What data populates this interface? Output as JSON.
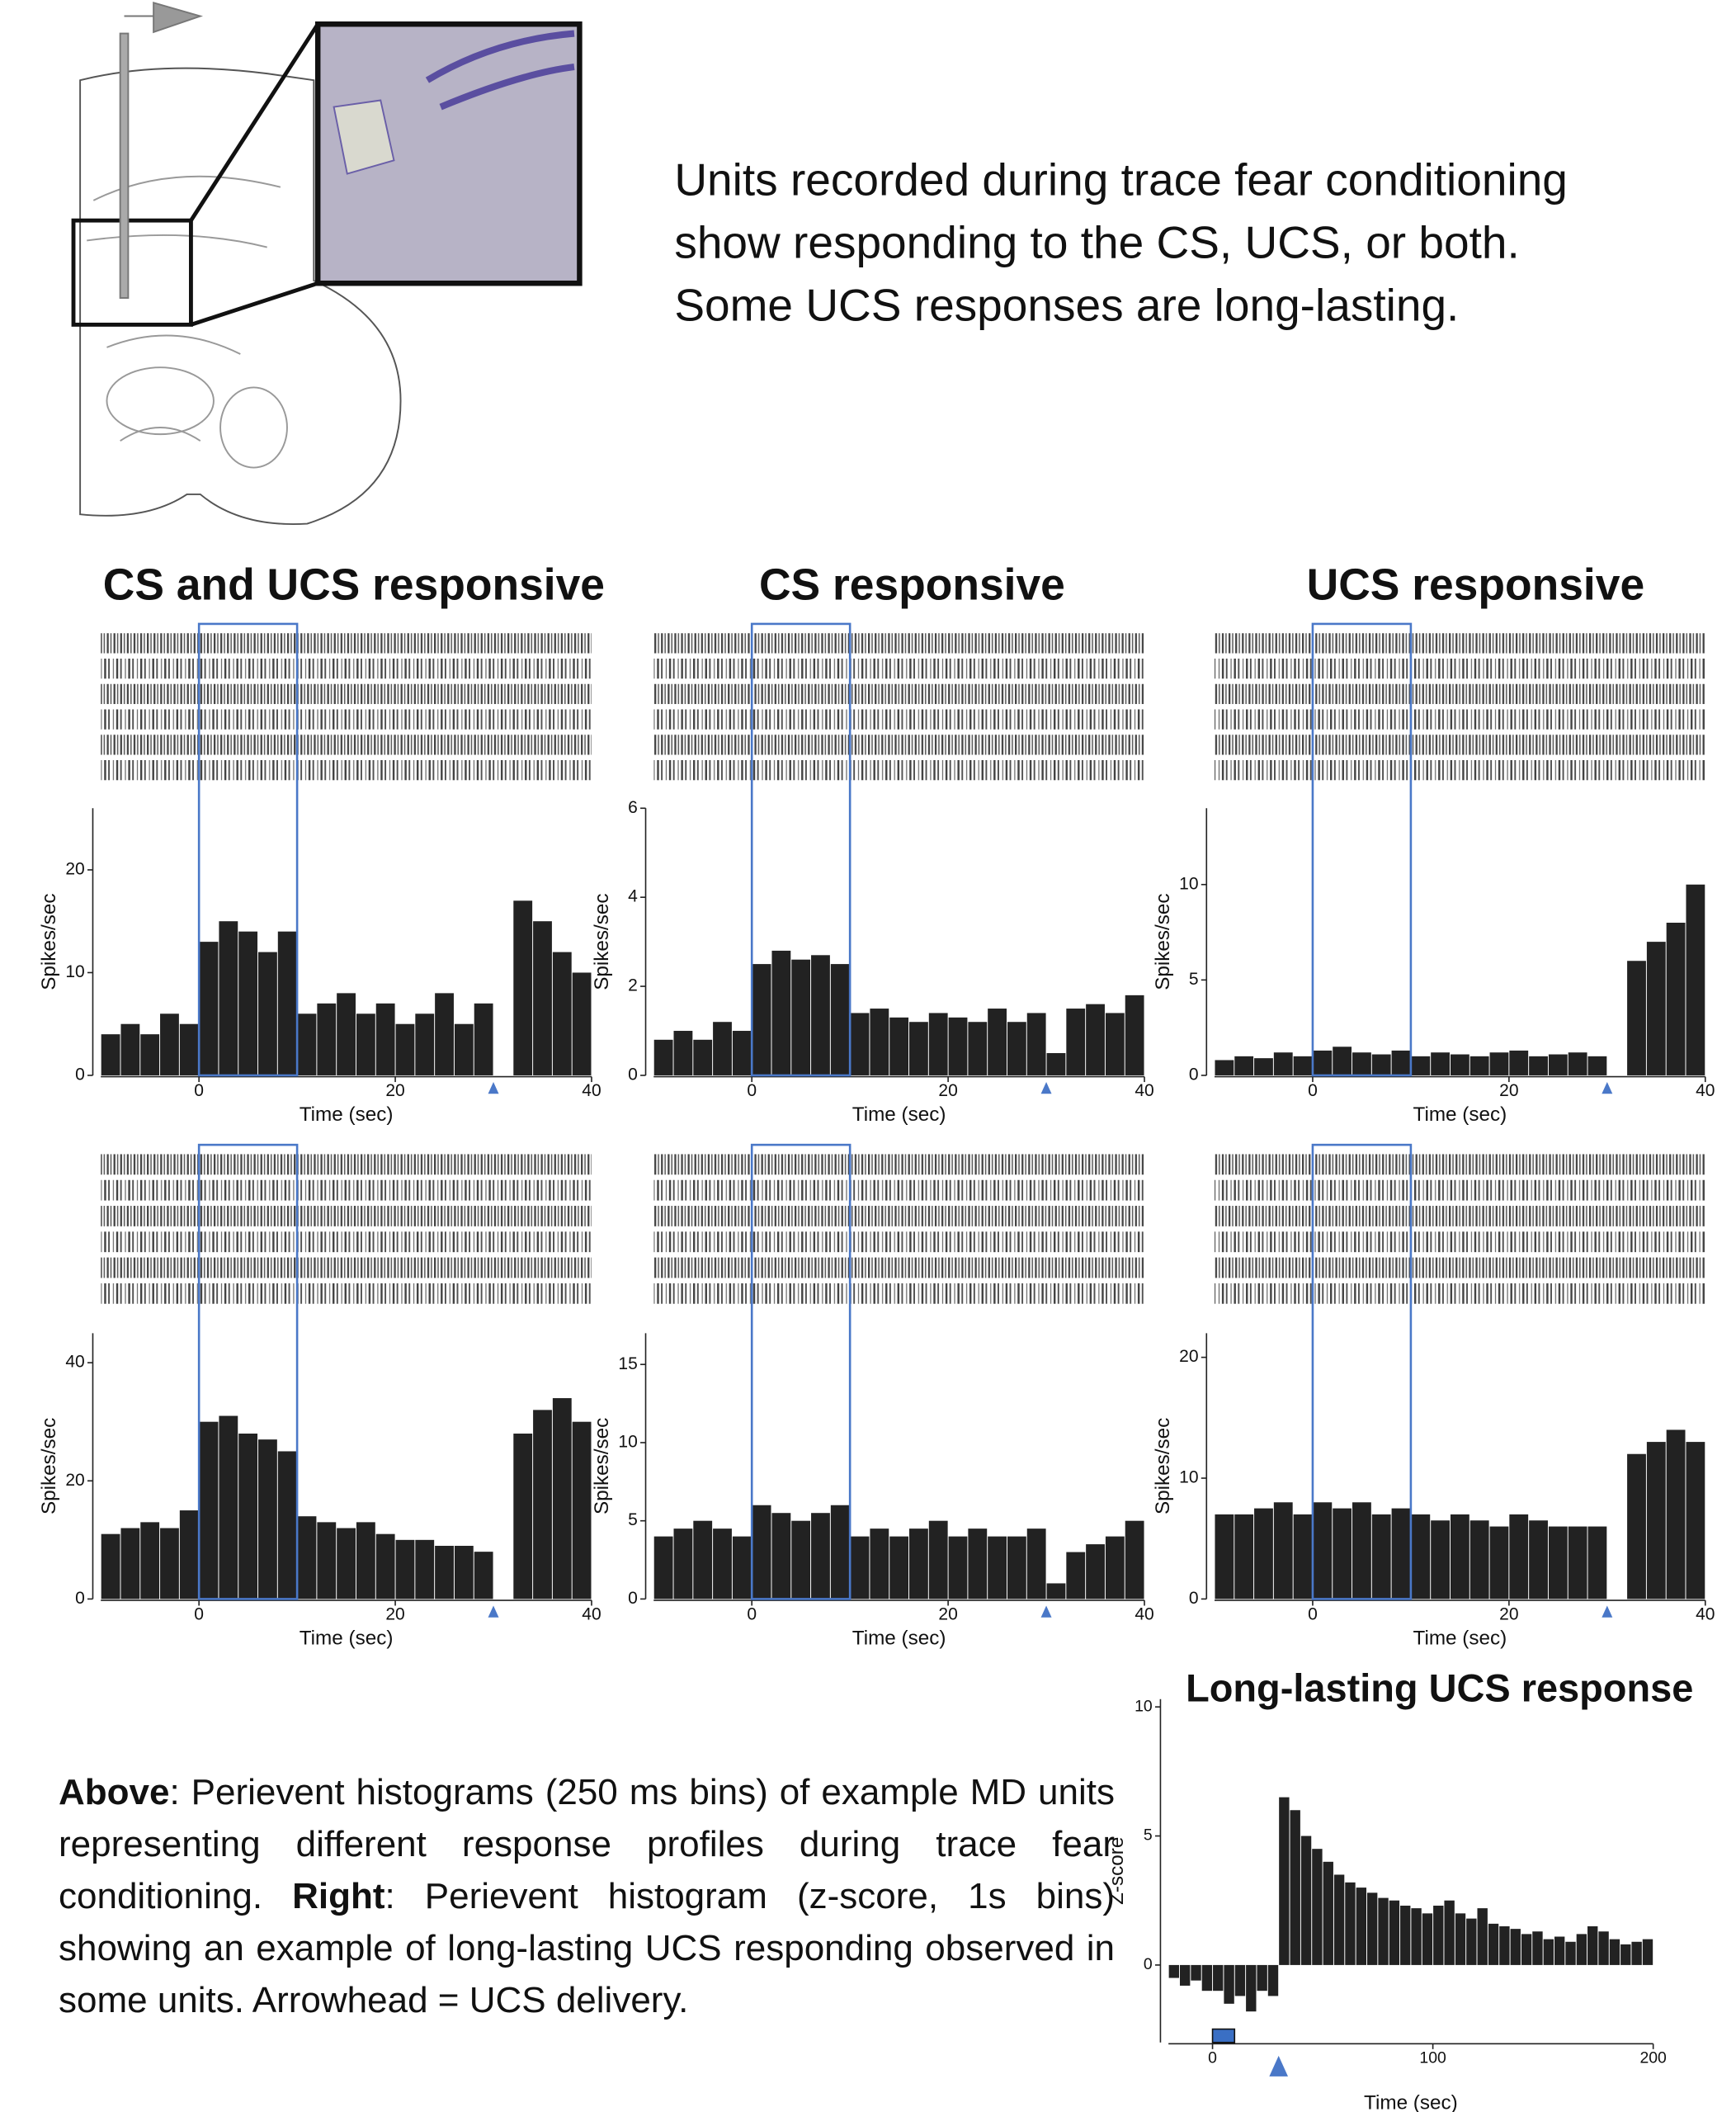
{
  "header": {
    "lines": [
      "Units recorded during trace fear conditioning",
      "show responding to the CS, UCS, or both.",
      "Some UCS responses are long-lasting."
    ]
  },
  "chart_data": [
    {
      "type": "histogram",
      "title": "CS and UCS responsive",
      "ylabel": "Spikes/sec",
      "xlabel": "Time (sec)",
      "bins": [
        -10,
        -8,
        -6,
        -4,
        -2,
        0,
        2,
        4,
        6,
        8,
        10,
        12,
        14,
        16,
        18,
        20,
        22,
        24,
        26,
        28,
        30,
        32,
        34,
        36,
        38,
        40
      ],
      "values": [
        4,
        5,
        4,
        6,
        5,
        13,
        15,
        14,
        12,
        14,
        6,
        7,
        8,
        6,
        7,
        5,
        6,
        8,
        5,
        7,
        0,
        17,
        15,
        12,
        10
      ],
      "xlim": [
        -10,
        40
      ],
      "xticks": [
        0,
        20,
        40
      ],
      "ylim": [
        0,
        26
      ],
      "yticks": [
        0,
        10,
        20
      ],
      "cs_window": [
        0,
        10
      ],
      "ucs_onset": 30
    },
    {
      "type": "histogram",
      "title": "CS responsive",
      "ylabel": "Spikes/sec",
      "xlabel": "Time (sec)",
      "bins": [
        -10,
        -8,
        -6,
        -4,
        -2,
        0,
        2,
        4,
        6,
        8,
        10,
        12,
        14,
        16,
        18,
        20,
        22,
        24,
        26,
        28,
        30,
        32,
        34,
        36,
        38,
        40
      ],
      "values": [
        0.8,
        1.0,
        0.8,
        1.2,
        1.0,
        2.5,
        2.8,
        2.6,
        2.7,
        2.5,
        1.4,
        1.5,
        1.3,
        1.2,
        1.4,
        1.3,
        1.2,
        1.5,
        1.2,
        1.4,
        0.5,
        1.5,
        1.6,
        1.4,
        1.8
      ],
      "xlim": [
        -10,
        40
      ],
      "xticks": [
        0,
        20,
        40
      ],
      "ylim": [
        0,
        6
      ],
      "yticks": [
        0,
        2,
        4,
        6
      ],
      "cs_window": [
        0,
        10
      ],
      "ucs_onset": 30
    },
    {
      "type": "histogram",
      "title": "UCS responsive",
      "ylabel": "Spikes/sec",
      "xlabel": "Time (sec)",
      "bins": [
        -10,
        -8,
        -6,
        -4,
        -2,
        0,
        2,
        4,
        6,
        8,
        10,
        12,
        14,
        16,
        18,
        20,
        22,
        24,
        26,
        28,
        30,
        32,
        34,
        36,
        38,
        40
      ],
      "values": [
        0.8,
        1,
        0.9,
        1.2,
        1,
        1.3,
        1.5,
        1.2,
        1.1,
        1.3,
        1.0,
        1.2,
        1.1,
        1.0,
        1.2,
        1.3,
        1.0,
        1.1,
        1.2,
        1.0,
        0,
        6,
        7,
        8,
        10
      ],
      "xlim": [
        -10,
        40
      ],
      "xticks": [
        0,
        20,
        40
      ],
      "ylim": [
        0,
        14
      ],
      "yticks": [
        0,
        5,
        10
      ],
      "cs_window": [
        0,
        10
      ],
      "ucs_onset": 30
    },
    {
      "type": "histogram",
      "ylabel": "Spikes/sec",
      "xlabel": "Time (sec)",
      "bins": [
        -10,
        -8,
        -6,
        -4,
        -2,
        0,
        2,
        4,
        6,
        8,
        10,
        12,
        14,
        16,
        18,
        20,
        22,
        24,
        26,
        28,
        30,
        32,
        34,
        36,
        38,
        40
      ],
      "values": [
        11,
        12,
        13,
        12,
        15,
        30,
        31,
        28,
        27,
        25,
        14,
        13,
        12,
        13,
        11,
        10,
        10,
        9,
        9,
        8,
        0,
        28,
        32,
        34,
        30
      ],
      "xlim": [
        -10,
        40
      ],
      "xticks": [
        0,
        20,
        40
      ],
      "ylim": [
        0,
        45
      ],
      "yticks": [
        0,
        20,
        40
      ],
      "cs_window": [
        0,
        10
      ],
      "ucs_onset": 30
    },
    {
      "type": "histogram",
      "ylabel": "Spikes/sec",
      "xlabel": "Time (sec)",
      "bins": [
        -10,
        -8,
        -6,
        -4,
        -2,
        0,
        2,
        4,
        6,
        8,
        10,
        12,
        14,
        16,
        18,
        20,
        22,
        24,
        26,
        28,
        30,
        32,
        34,
        36,
        38,
        40
      ],
      "values": [
        4,
        4.5,
        5,
        4.5,
        4,
        6,
        5.5,
        5,
        5.5,
        6,
        4,
        4.5,
        4,
        4.5,
        5,
        4,
        4.5,
        4,
        4,
        4.5,
        1,
        3,
        3.5,
        4,
        5
      ],
      "xlim": [
        -10,
        40
      ],
      "xticks": [
        0,
        20,
        40
      ],
      "ylim": [
        0,
        17
      ],
      "yticks": [
        0,
        5,
        10,
        15
      ],
      "cs_window": [
        0,
        10
      ],
      "ucs_onset": 30
    },
    {
      "type": "histogram",
      "ylabel": "Spikes/sec",
      "xlabel": "Time (sec)",
      "bins": [
        -10,
        -8,
        -6,
        -4,
        -2,
        0,
        2,
        4,
        6,
        8,
        10,
        12,
        14,
        16,
        18,
        20,
        22,
        24,
        26,
        28,
        30,
        32,
        34,
        36,
        38,
        40
      ],
      "values": [
        7,
        7,
        7.5,
        8,
        7,
        8,
        7.5,
        8,
        7,
        7.5,
        7,
        6.5,
        7,
        6.5,
        6,
        7,
        6.5,
        6,
        6,
        6,
        0,
        12,
        13,
        14,
        13
      ],
      "xlim": [
        -10,
        40
      ],
      "xticks": [
        0,
        20,
        40
      ],
      "ylim": [
        0,
        22
      ],
      "yticks": [
        0,
        10,
        20
      ],
      "cs_window": [
        0,
        10
      ],
      "ucs_onset": 30
    },
    {
      "type": "histogram",
      "title": "Long-lasting UCS response",
      "ylabel": "Z-score",
      "xlabel": "Time (sec)",
      "bins": [
        -20,
        -15,
        -10,
        -5,
        0,
        5,
        10,
        15,
        20,
        25,
        30,
        35,
        40,
        45,
        50,
        55,
        60,
        65,
        70,
        75,
        80,
        85,
        90,
        95,
        100,
        105,
        110,
        115,
        120,
        125,
        130,
        135,
        140,
        145,
        150,
        155,
        160,
        165,
        170,
        175,
        180,
        185,
        190,
        195,
        200
      ],
      "values": [
        -0.5,
        -0.8,
        -0.6,
        -1.0,
        -1,
        -1.5,
        -1.2,
        -1.8,
        -1.0,
        -1.2,
        6.5,
        6,
        5,
        4.5,
        4,
        3.5,
        3.2,
        3,
        2.8,
        2.6,
        2.5,
        2.3,
        2.2,
        2.0,
        2.3,
        2.5,
        2.0,
        1.8,
        2.2,
        1.6,
        1.5,
        1.4,
        1.2,
        1.3,
        1.0,
        1.1,
        0.9,
        1.2,
        1.5,
        1.3,
        1.0,
        0.8,
        0.9,
        1.0
      ],
      "xlim": [
        -20,
        200
      ],
      "xticks": [
        0,
        100,
        200
      ],
      "ylim": [
        -3,
        10.3
      ],
      "yticks": [
        0,
        5,
        10
      ],
      "cs_window": [
        0,
        10
      ],
      "ucs_onset": 30
    }
  ],
  "caption": {
    "above_label": "Above",
    "above_text": ": Perievent histograms (250 ms bins) of example MD units representing different response profiles during trace fear conditioning. ",
    "right_label": "Right",
    "right_text": ": Perievent histogram (z-score, 1s bins) showing an example of long-lasting UCS responding observed in some units.  Arrowhead = UCS delivery."
  }
}
